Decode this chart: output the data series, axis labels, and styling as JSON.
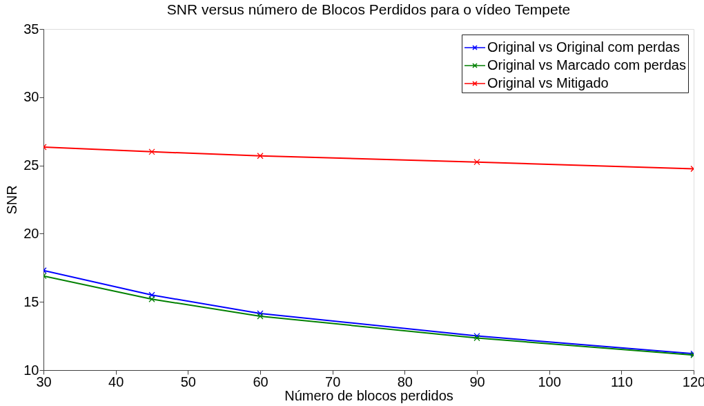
{
  "chart_data": {
    "type": "line",
    "title": "SNR versus número de Blocos Perdidos para o vídeo Tempete",
    "xlabel": "Número de blocos perdidos",
    "ylabel": "SNR",
    "x": [
      30,
      45,
      60,
      90,
      120
    ],
    "series": [
      {
        "name": "Original vs Original com perdas",
        "color": "#0000ff",
        "values": [
          17.3,
          15.5,
          14.15,
          12.5,
          11.2
        ]
      },
      {
        "name": "Original vs Marcado com perdas",
        "color": "#008000",
        "values": [
          16.9,
          15.2,
          13.95,
          12.35,
          11.1
        ]
      },
      {
        "name": "Original vs Mitigado",
        "color": "#ff0000",
        "values": [
          26.35,
          26.0,
          25.7,
          25.25,
          24.75
        ]
      }
    ],
    "xlim": [
      30,
      120
    ],
    "ylim": [
      10,
      35
    ],
    "xticks": [
      30,
      40,
      50,
      60,
      70,
      80,
      90,
      100,
      110,
      120
    ],
    "yticks": [
      10,
      15,
      20,
      25,
      30,
      35
    ],
    "grid": false,
    "legend": "top right",
    "marker": "cross",
    "line_style": "solid"
  }
}
